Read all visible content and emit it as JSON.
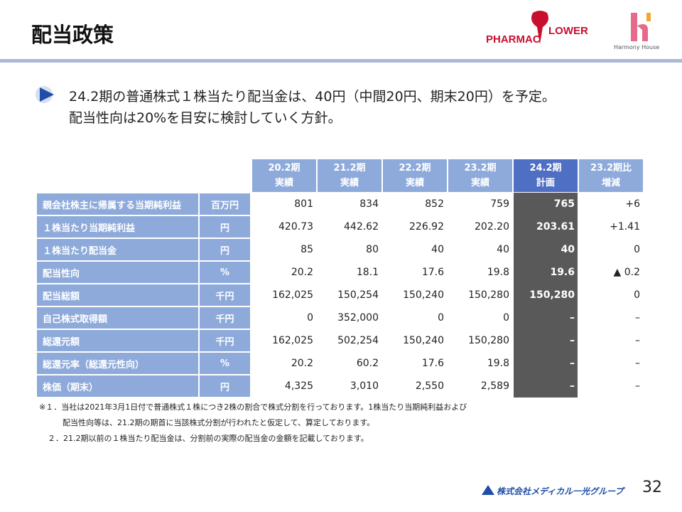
{
  "header": {
    "title": "配当政策",
    "logo_left": [
      "PHARMAC",
      "LOWER"
    ],
    "logo_right": "Harmony House"
  },
  "bullet": {
    "lines": [
      "24.2期の普通株式１株当たり配当金は、40円（中間20円、期末20円）を予定。",
      "配当性向は20%を目安に検討していく方針。"
    ]
  },
  "table": {
    "columns": [
      {
        "period": "20.2期",
        "sub": "実績"
      },
      {
        "period": "21.2期",
        "sub": "実績"
      },
      {
        "period": "22.2期",
        "sub": "実績"
      },
      {
        "period": "23.2期",
        "sub": "実績"
      },
      {
        "period": "24.2期",
        "sub": "計画"
      },
      {
        "period": "23.2期比",
        "sub": "増減"
      }
    ],
    "rows": [
      {
        "label": "親会社株主に帰属する当期純利益",
        "unit": "百万円",
        "values": [
          "801",
          "834",
          "852",
          "759",
          "765",
          "+6"
        ]
      },
      {
        "label": "１株当たり当期純利益",
        "unit": "円",
        "values": [
          "420.73",
          "442.62",
          "226.92",
          "202.20",
          "203.61",
          "+1.41"
        ]
      },
      {
        "label": "１株当たり配当金",
        "unit": "円",
        "values": [
          "85",
          "80",
          "40",
          "40",
          "40",
          "0"
        ]
      },
      {
        "label": "配当性向",
        "unit": "%",
        "values": [
          "20.2",
          "18.1",
          "17.6",
          "19.8",
          "19.6",
          "▲ 0.2"
        ]
      },
      {
        "label": "配当総額",
        "unit": "千円",
        "values": [
          "162,025",
          "150,254",
          "150,240",
          "150,280",
          "150,280",
          "0"
        ]
      },
      {
        "label": "自己株式取得額",
        "unit": "千円",
        "values": [
          "0",
          "352,000",
          "0",
          "0",
          "–",
          "–"
        ]
      },
      {
        "label": "総還元額",
        "unit": "千円",
        "values": [
          "162,025",
          "502,254",
          "150,240",
          "150,280",
          "–",
          "–"
        ]
      },
      {
        "label": "総還元率（総還元性向）",
        "unit": "%",
        "values": [
          "20.2",
          "60.2",
          "17.6",
          "19.8",
          "–",
          "–"
        ]
      },
      {
        "label": "株価（期末）",
        "unit": "円",
        "values": [
          "4,325",
          "3,010",
          "2,550",
          "2,589",
          "–",
          "–"
        ]
      }
    ]
  },
  "footnotes": [
    "※１．当社は2021年3月1日付で普通株式１株につき2株の割合で株式分割を行っております。1株当たり当期純利益および",
    "配当性向等は、21.2期の期首に当該株式分割が行われたと仮定して、算定しております。",
    "２．21.2期以前の１株当たり配当金は、分割前の実際の配当金の金額を記載しております。"
  ],
  "footer": {
    "company": "株式会社メディカル一光グループ",
    "page": "32"
  }
}
